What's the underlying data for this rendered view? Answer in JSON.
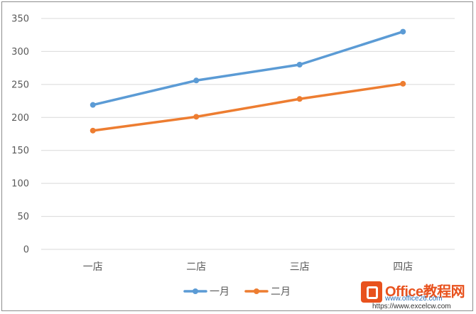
{
  "chart_data": {
    "type": "line",
    "categories": [
      "一店",
      "二店",
      "三店",
      "四店"
    ],
    "series": [
      {
        "name": "一月",
        "values": [
          219,
          256,
          280,
          330
        ],
        "color": "#5b9bd5"
      },
      {
        "name": "二月",
        "values": [
          180,
          201,
          228,
          251
        ],
        "color": "#ed7d31"
      }
    ],
    "ylim": [
      0,
      350
    ],
    "yticks": [
      0,
      50,
      100,
      150,
      200,
      250,
      300,
      350
    ],
    "grid": true,
    "legend_position": "bottom",
    "gridline_color": "#d9d9d9"
  },
  "watermark": {
    "brand": "Office教程网",
    "site": "www.office26.com",
    "url": "https://www.excelcw.com"
  }
}
